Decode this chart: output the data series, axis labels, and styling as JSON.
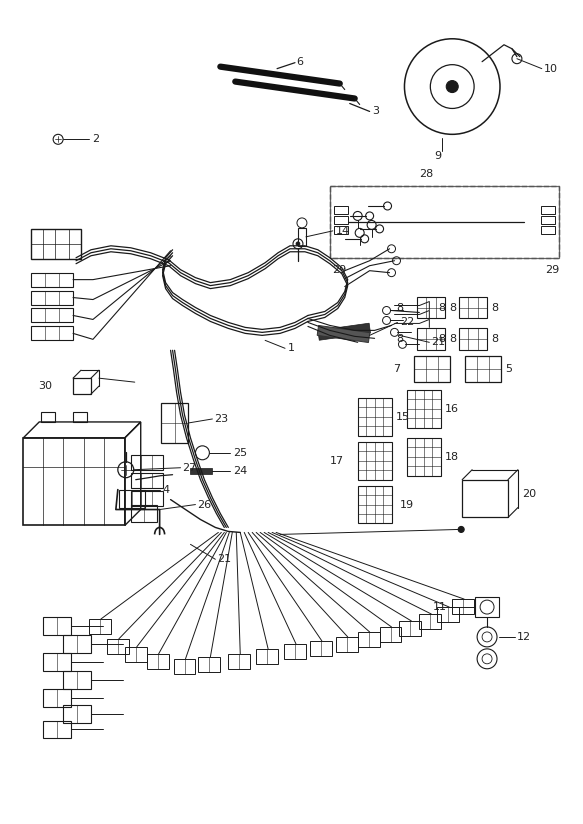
{
  "bg_color": "#ffffff",
  "lc": "#1a1a1a",
  "lc_mid": "#444444",
  "fig_w": 5.83,
  "fig_h": 8.24,
  "dpi": 100
}
